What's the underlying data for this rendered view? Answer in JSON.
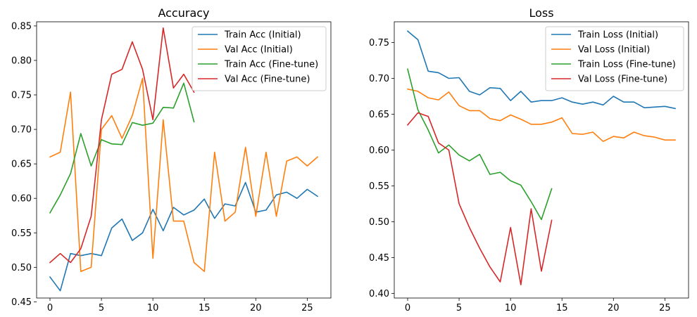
{
  "chart_data": [
    {
      "type": "line",
      "title": "Accuracy",
      "xlabel": "",
      "ylabel": "",
      "xlim": [
        -1.3,
        27.3
      ],
      "ylim": [
        0.4555,
        0.856
      ],
      "xticks": [
        0,
        5,
        10,
        15,
        20,
        25
      ],
      "yticks": [
        0.45,
        0.5,
        0.55,
        0.6,
        0.65,
        0.7,
        0.75,
        0.8,
        0.85
      ],
      "ytick_labels": [
        "0.45",
        "0.50",
        "0.55",
        "0.60",
        "0.65",
        "0.70",
        "0.75",
        "0.80",
        "0.85"
      ],
      "legend": "top-right",
      "grid": false,
      "series": [
        {
          "name": "Train Acc (Initial)",
          "color": "#1f77b4",
          "values": [
            0.486,
            0.466,
            0.52,
            0.517,
            0.52,
            0.517,
            0.557,
            0.57,
            0.539,
            0.55,
            0.584,
            0.553,
            0.587,
            0.576,
            0.583,
            0.599,
            0.571,
            0.592,
            0.589,
            0.623,
            0.58,
            0.583,
            0.605,
            0.609,
            0.6,
            0.613,
            0.603
          ]
        },
        {
          "name": "Val Acc (Initial)",
          "color": "#ff7f0e",
          "values": [
            0.66,
            0.667,
            0.754,
            0.494,
            0.5,
            0.7,
            0.72,
            0.687,
            0.72,
            0.774,
            0.513,
            0.714,
            0.567,
            0.567,
            0.507,
            0.494,
            0.667,
            0.567,
            0.58,
            0.674,
            0.574,
            0.667,
            0.574,
            0.654,
            0.66,
            0.647,
            0.66
          ]
        },
        {
          "name": "Train Acc (Fine-tune)",
          "color": "#2ca02c",
          "values": [
            0.579,
            0.605,
            0.636,
            0.694,
            0.647,
            0.685,
            0.679,
            0.678,
            0.71,
            0.706,
            0.709,
            0.732,
            0.731,
            0.767,
            0.711
          ]
        },
        {
          "name": "Val Acc (Fine-tune)",
          "color": "#d62728",
          "values": [
            0.507,
            0.52,
            0.507,
            0.527,
            0.574,
            0.714,
            0.78,
            0.787,
            0.827,
            0.787,
            0.714,
            0.847,
            0.76,
            0.78,
            0.754
          ]
        }
      ]
    },
    {
      "type": "line",
      "title": "Loss",
      "xlabel": "",
      "ylabel": "",
      "xlim": [
        -1.3,
        27.3
      ],
      "ylim": [
        0.3935,
        0.779
      ],
      "xticks": [
        0,
        5,
        10,
        15,
        20,
        25
      ],
      "yticks": [
        0.4,
        0.45,
        0.5,
        0.55,
        0.6,
        0.65,
        0.7,
        0.75
      ],
      "ytick_labels": [
        "0.40",
        "0.45",
        "0.50",
        "0.55",
        "0.60",
        "0.65",
        "0.70",
        "0.75"
      ],
      "legend": "top-right",
      "grid": false,
      "series": [
        {
          "name": "Train Loss (Initial)",
          "color": "#1f77b4",
          "values": [
            0.766,
            0.754,
            0.71,
            0.708,
            0.7,
            0.701,
            0.682,
            0.677,
            0.687,
            0.686,
            0.669,
            0.682,
            0.667,
            0.669,
            0.669,
            0.673,
            0.667,
            0.664,
            0.667,
            0.663,
            0.675,
            0.667,
            0.667,
            0.659,
            0.66,
            0.661,
            0.658
          ]
        },
        {
          "name": "Val Loss (Initial)",
          "color": "#ff7f0e",
          "values": [
            0.685,
            0.682,
            0.673,
            0.67,
            0.681,
            0.662,
            0.655,
            0.655,
            0.644,
            0.641,
            0.649,
            0.643,
            0.636,
            0.636,
            0.639,
            0.645,
            0.623,
            0.622,
            0.625,
            0.612,
            0.619,
            0.617,
            0.625,
            0.62,
            0.618,
            0.614,
            0.614
          ]
        },
        {
          "name": "Train Loss (Fine-tune)",
          "color": "#2ca02c",
          "values": [
            0.713,
            0.656,
            0.628,
            0.596,
            0.607,
            0.593,
            0.585,
            0.594,
            0.566,
            0.569,
            0.557,
            0.551,
            0.528,
            0.503,
            0.546
          ]
        },
        {
          "name": "Val Loss (Fine-tune)",
          "color": "#d62728",
          "values": [
            0.635,
            0.652,
            0.647,
            0.61,
            0.6,
            0.525,
            0.492,
            0.463,
            0.437,
            0.416,
            0.492,
            0.412,
            0.518,
            0.431,
            0.502
          ]
        }
      ]
    }
  ]
}
